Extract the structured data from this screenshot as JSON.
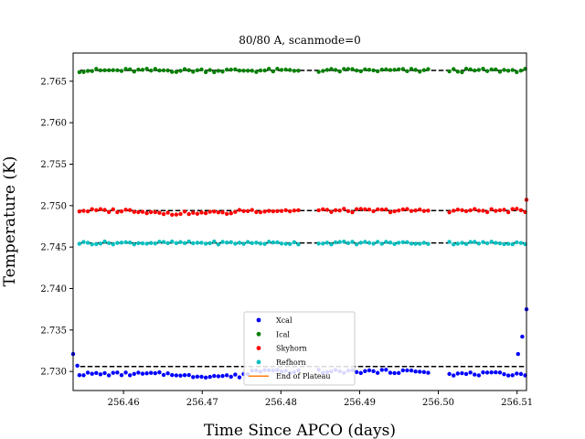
{
  "chart_data": {
    "type": "scatter",
    "title": "80/80 A, scanmode=0",
    "xlabel": "Time Since APCO (days)",
    "ylabel": "Temperature (K)",
    "xlim": [
      256.4536,
      256.5112
    ],
    "ylim": [
      2.7277,
      2.7684
    ],
    "xticks": [
      "256.46",
      "256.47",
      "256.48",
      "256.49",
      "256.50",
      "256.51"
    ],
    "yticks": [
      "2.730",
      "2.735",
      "2.740",
      "2.745",
      "2.750",
      "2.755",
      "2.760",
      "2.765"
    ],
    "legend_position": "lower center",
    "grid": false,
    "series": [
      {
        "name": "Xcal",
        "color": "#0000ff",
        "plateau": 2.7306
      },
      {
        "name": "Ical",
        "color": "#008000",
        "plateau": 2.7663
      },
      {
        "name": "Skyhorn",
        "color": "#ff0000",
        "plateau": 2.7494
      },
      {
        "name": "Refhorn",
        "color": "#00bfbf",
        "plateau": 2.7455
      }
    ],
    "legend": [
      {
        "label": "Xcal",
        "color": "#0000ff",
        "kind": "marker"
      },
      {
        "label": "Ical",
        "color": "#008000",
        "kind": "marker"
      },
      {
        "label": "Skyhorn",
        "color": "#ff0000",
        "kind": "marker"
      },
      {
        "label": "Refhorn",
        "color": "#00bfbf",
        "kind": "marker"
      },
      {
        "label": "End of Plateau",
        "color": "#ff7f0e",
        "kind": "line"
      }
    ],
    "segments": [
      [
        256.4544,
        256.4823
      ],
      [
        256.4848,
        256.499
      ],
      [
        256.5014,
        256.5112
      ]
    ],
    "sample_step": 0.000535,
    "start_values": {
      "Xcal": [
        2.7321,
        2.7307
      ]
    },
    "end_values": {
      "Xcal": [
        2.7321,
        2.7342,
        2.7375
      ],
      "Skyhorn": [
        2.7507
      ]
    }
  }
}
